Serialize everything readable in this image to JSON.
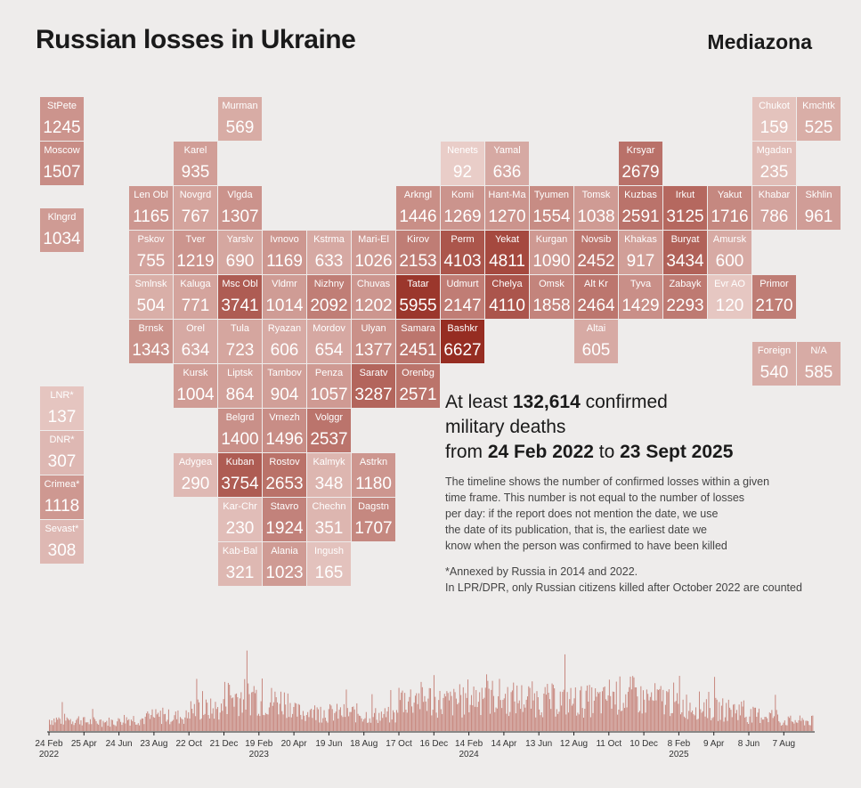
{
  "title": "Russian losses in Ukraine",
  "brand": "Mediazona",
  "headline": {
    "line1_pre": "At least ",
    "total": "132,614",
    "line1_post": " confirmed",
    "line2": "military deaths",
    "line3_pre": "from ",
    "start": "24 Feb 2022",
    "line3_mid": " to ",
    "end": "23 Sept 2025"
  },
  "description": "The timeline shows the number of confirmed losses within a given\ntime frame. This number is not equal to the number of losses\nper day: if the report does not mention the date, we use\nthe date of its publication, that is, the earliest date we\nknow when the person was confirmed to have been killed",
  "note": "*Annexed by Russia in 2014 and 2022.\nIn LPR/DPR, only Russian citizens killed after October 2022 are counted",
  "colors": {
    "min": "#e9cdc8",
    "max": "#962d22",
    "background": "#eeeceb",
    "bars": "#c7877e"
  },
  "chart_data": [
    {
      "type": "heatmap",
      "description_of_cells": "tile-grid map of Russian regions; value = confirmed deaths",
      "regions": [
        {
          "name": "StPete",
          "value": 1245,
          "col": 0,
          "row": 0
        },
        {
          "name": "Murman",
          "value": 569,
          "col": 4,
          "row": 0
        },
        {
          "name": "Chukot",
          "value": 159,
          "col": 16,
          "row": 0
        },
        {
          "name": "Kmchtk",
          "value": 525,
          "col": 17,
          "row": 0
        },
        {
          "name": "Moscow",
          "value": 1507,
          "col": 0,
          "row": 1
        },
        {
          "name": "Karel",
          "value": 935,
          "col": 3,
          "row": 1
        },
        {
          "name": "Nenets",
          "value": 92,
          "col": 9,
          "row": 1
        },
        {
          "name": "Yamal",
          "value": 636,
          "col": 10,
          "row": 1
        },
        {
          "name": "Krsyar",
          "value": 2679,
          "col": 13,
          "row": 1
        },
        {
          "name": "Mgadan",
          "value": 235,
          "col": 16,
          "row": 1
        },
        {
          "name": "Len Obl",
          "value": 1165,
          "col": 2,
          "row": 2
        },
        {
          "name": "Novgrd",
          "value": 767,
          "col": 3,
          "row": 2
        },
        {
          "name": "Vlgda",
          "value": 1307,
          "col": 4,
          "row": 2
        },
        {
          "name": "Arkngl",
          "value": 1446,
          "col": 8,
          "row": 2
        },
        {
          "name": "Komi",
          "value": 1269,
          "col": 9,
          "row": 2
        },
        {
          "name": "Hant-Ma",
          "value": 1270,
          "col": 10,
          "row": 2
        },
        {
          "name": "Tyumen",
          "value": 1554,
          "col": 11,
          "row": 2
        },
        {
          "name": "Tomsk",
          "value": 1038,
          "col": 12,
          "row": 2
        },
        {
          "name": "Kuzbas",
          "value": 2591,
          "col": 13,
          "row": 2
        },
        {
          "name": "Irkut",
          "value": 3125,
          "col": 14,
          "row": 2
        },
        {
          "name": "Yakut",
          "value": 1716,
          "col": 15,
          "row": 2
        },
        {
          "name": "Khabar",
          "value": 786,
          "col": 16,
          "row": 2
        },
        {
          "name": "Skhlin",
          "value": 961,
          "col": 17,
          "row": 2
        },
        {
          "name": "Klngrd",
          "value": 1034,
          "col": 0,
          "row": 2.5
        },
        {
          "name": "Pskov",
          "value": 755,
          "col": 2,
          "row": 3
        },
        {
          "name": "Tver",
          "value": 1219,
          "col": 3,
          "row": 3
        },
        {
          "name": "Yarslv",
          "value": 690,
          "col": 4,
          "row": 3
        },
        {
          "name": "Ivnovo",
          "value": 1169,
          "col": 5,
          "row": 3
        },
        {
          "name": "Kstrma",
          "value": 633,
          "col": 6,
          "row": 3
        },
        {
          "name": "Mari-El",
          "value": 1026,
          "col": 7,
          "row": 3
        },
        {
          "name": "Kirov",
          "value": 2153,
          "col": 8,
          "row": 3
        },
        {
          "name": "Perm",
          "value": 4103,
          "col": 9,
          "row": 3
        },
        {
          "name": "Yekat",
          "value": 4811,
          "col": 10,
          "row": 3
        },
        {
          "name": "Kurgan",
          "value": 1090,
          "col": 11,
          "row": 3
        },
        {
          "name": "Novsib",
          "value": 2452,
          "col": 12,
          "row": 3
        },
        {
          "name": "Khakas",
          "value": 917,
          "col": 13,
          "row": 3
        },
        {
          "name": "Buryat",
          "value": 3434,
          "col": 14,
          "row": 3
        },
        {
          "name": "Amursk",
          "value": 600,
          "col": 15,
          "row": 3
        },
        {
          "name": "Smlnsk",
          "value": 504,
          "col": 2,
          "row": 4
        },
        {
          "name": "Kaluga",
          "value": 771,
          "col": 3,
          "row": 4
        },
        {
          "name": "Msc Obl",
          "value": 3741,
          "col": 4,
          "row": 4
        },
        {
          "name": "Vldmr",
          "value": 1014,
          "col": 5,
          "row": 4
        },
        {
          "name": "Nizhny",
          "value": 2092,
          "col": 6,
          "row": 4
        },
        {
          "name": "Chuvas",
          "value": 1202,
          "col": 7,
          "row": 4
        },
        {
          "name": "Tatar",
          "value": 5955,
          "col": 8,
          "row": 4
        },
        {
          "name": "Udmurt",
          "value": 2147,
          "col": 9,
          "row": 4
        },
        {
          "name": "Chelya",
          "value": 4110,
          "col": 10,
          "row": 4
        },
        {
          "name": "Omsk",
          "value": 1858,
          "col": 11,
          "row": 4
        },
        {
          "name": "Alt Kr",
          "value": 2464,
          "col": 12,
          "row": 4
        },
        {
          "name": "Tyva",
          "value": 1429,
          "col": 13,
          "row": 4
        },
        {
          "name": "Zabayk",
          "value": 2293,
          "col": 14,
          "row": 4
        },
        {
          "name": "Evr AO",
          "value": 120,
          "col": 15,
          "row": 4
        },
        {
          "name": "Primor",
          "value": 2170,
          "col": 16,
          "row": 4
        },
        {
          "name": "Brnsk",
          "value": 1343,
          "col": 2,
          "row": 5
        },
        {
          "name": "Orel",
          "value": 634,
          "col": 3,
          "row": 5
        },
        {
          "name": "Tula",
          "value": 723,
          "col": 4,
          "row": 5
        },
        {
          "name": "Ryazan",
          "value": 606,
          "col": 5,
          "row": 5
        },
        {
          "name": "Mordov",
          "value": 654,
          "col": 6,
          "row": 5
        },
        {
          "name": "Ulyan",
          "value": 1377,
          "col": 7,
          "row": 5
        },
        {
          "name": "Samara",
          "value": 2451,
          "col": 8,
          "row": 5
        },
        {
          "name": "Bashkr",
          "value": 6627,
          "col": 9,
          "row": 5
        },
        {
          "name": "Altai",
          "value": 605,
          "col": 12,
          "row": 5
        },
        {
          "name": "Foreign",
          "value": 540,
          "col": 16,
          "row": 5.5
        },
        {
          "name": "N/A",
          "value": 585,
          "col": 17,
          "row": 5.5
        },
        {
          "name": "Kursk",
          "value": 1004,
          "col": 3,
          "row": 6
        },
        {
          "name": "Liptsk",
          "value": 864,
          "col": 4,
          "row": 6
        },
        {
          "name": "Tambov",
          "value": 904,
          "col": 5,
          "row": 6
        },
        {
          "name": "Penza",
          "value": 1057,
          "col": 6,
          "row": 6
        },
        {
          "name": "Saratv",
          "value": 3287,
          "col": 7,
          "row": 6
        },
        {
          "name": "Orenbg",
          "value": 2571,
          "col": 8,
          "row": 6
        },
        {
          "name": "LNR*",
          "value": 137,
          "col": 0,
          "row": 6.5
        },
        {
          "name": "Belgrd",
          "value": 1400,
          "col": 4,
          "row": 7
        },
        {
          "name": "Vrnezh",
          "value": 1496,
          "col": 5,
          "row": 7
        },
        {
          "name": "Volggr",
          "value": 2537,
          "col": 6,
          "row": 7
        },
        {
          "name": "DNR*",
          "value": 307,
          "col": 0,
          "row": 7.5
        },
        {
          "name": "Adygea",
          "value": 290,
          "col": 3,
          "row": 8
        },
        {
          "name": "Kuban",
          "value": 3754,
          "col": 4,
          "row": 8
        },
        {
          "name": "Rostov",
          "value": 2653,
          "col": 5,
          "row": 8
        },
        {
          "name": "Kalmyk",
          "value": 348,
          "col": 6,
          "row": 8
        },
        {
          "name": "Astrkn",
          "value": 1180,
          "col": 7,
          "row": 8
        },
        {
          "name": "Crimea*",
          "value": 1118,
          "col": 0,
          "row": 8.5
        },
        {
          "name": "Kar-Chr",
          "value": 230,
          "col": 4,
          "row": 9
        },
        {
          "name": "Stavro",
          "value": 1924,
          "col": 5,
          "row": 9
        },
        {
          "name": "Chechn",
          "value": 351,
          "col": 6,
          "row": 9
        },
        {
          "name": "Dagstn",
          "value": 1707,
          "col": 7,
          "row": 9
        },
        {
          "name": "Sevast*",
          "value": 308,
          "col": 0,
          "row": 9.5
        },
        {
          "name": "Kab-Bal",
          "value": 321,
          "col": 4,
          "row": 10
        },
        {
          "name": "Alania",
          "value": 1023,
          "col": 5,
          "row": 10
        },
        {
          "name": "Ingush",
          "value": 165,
          "col": 6,
          "row": 10
        }
      ]
    },
    {
      "type": "bar",
      "description_of_x": "daily timeline",
      "x_range": [
        "24 Feb 2022",
        "23 Sept 2025"
      ],
      "ticks": [
        {
          "label": "24 Feb",
          "year": "2022"
        },
        {
          "label": "25 Apr",
          "year": ""
        },
        {
          "label": "24 Jun",
          "year": ""
        },
        {
          "label": "23 Aug",
          "year": ""
        },
        {
          "label": "22 Oct",
          "year": ""
        },
        {
          "label": "21 Dec",
          "year": ""
        },
        {
          "label": "19 Feb",
          "year": "2023"
        },
        {
          "label": "20 Apr",
          "year": ""
        },
        {
          "label": "19 Jun",
          "year": ""
        },
        {
          "label": "18 Aug",
          "year": ""
        },
        {
          "label": "17 Oct",
          "year": ""
        },
        {
          "label": "16 Dec",
          "year": ""
        },
        {
          "label": "14 Feb",
          "year": "2024"
        },
        {
          "label": "14 Apr",
          "year": ""
        },
        {
          "label": "13 Jun",
          "year": ""
        },
        {
          "label": "12 Aug",
          "year": ""
        },
        {
          "label": "11 Oct",
          "year": ""
        },
        {
          "label": "10 Dec",
          "year": ""
        },
        {
          "label": "8 Feb",
          "year": "2025"
        },
        {
          "label": "9 Apr",
          "year": ""
        },
        {
          "label": "8 Jun",
          "year": ""
        },
        {
          "label": "7 Aug",
          "year": ""
        }
      ],
      "segments": [
        {
          "from": "24 Feb 2022",
          "level": 0.16
        },
        {
          "from": "25 Apr 2022",
          "level": 0.13
        },
        {
          "from": "24 Jun 2022",
          "level": 0.17
        },
        {
          "from": "23 Aug 2022",
          "level": 0.2
        },
        {
          "from": "22 Oct 2022",
          "level": 0.3
        },
        {
          "from": "21 Dec 2022",
          "level": 0.48
        },
        {
          "from": "19 Feb 2023",
          "level": 0.42
        },
        {
          "from": "20 Apr 2023",
          "level": 0.26
        },
        {
          "from": "19 Jun 2023",
          "level": 0.25
        },
        {
          "from": "18 Aug 2023",
          "level": 0.22
        },
        {
          "from": "17 Oct 2023",
          "level": 0.45
        },
        {
          "from": "16 Dec 2023",
          "level": 0.4
        },
        {
          "from": "14 Feb 2024",
          "level": 0.48
        },
        {
          "from": "14 Apr 2024",
          "level": 0.45
        },
        {
          "from": "13 Jun 2024",
          "level": 0.43
        },
        {
          "from": "12 Aug 2024",
          "level": 0.42
        },
        {
          "from": "11 Oct 2024",
          "level": 0.5
        },
        {
          "from": "10 Dec 2024",
          "level": 0.44
        },
        {
          "from": "8 Feb 2025",
          "level": 0.36
        },
        {
          "from": "9 Apr 2025",
          "level": 0.3
        },
        {
          "from": "8 Jun 2025",
          "level": 0.22
        },
        {
          "from": "7 Aug 2025",
          "level": 0.14
        }
      ]
    }
  ]
}
